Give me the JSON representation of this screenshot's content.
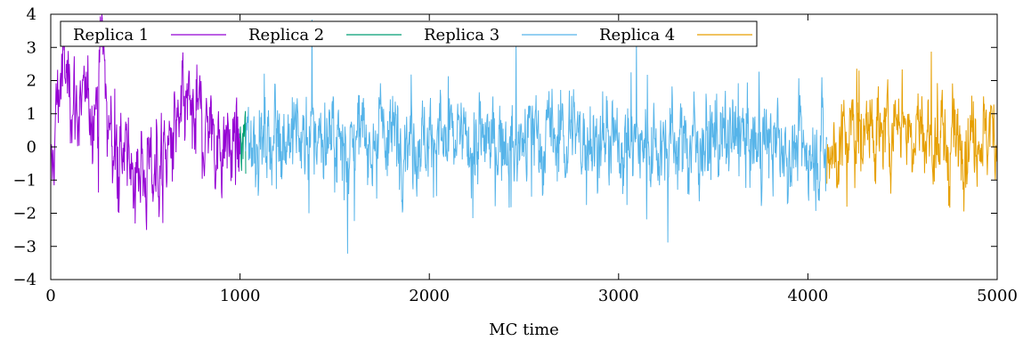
{
  "chart_data": {
    "type": "line",
    "title": "",
    "xlabel": "MC time",
    "ylabel": "",
    "xlim": [
      0,
      5000
    ],
    "ylim": [
      -4,
      4
    ],
    "xticks": [
      "0",
      "1000",
      "2000",
      "3000",
      "4000",
      "5000"
    ],
    "yticks": [
      "−4",
      "−3",
      "−2",
      "−1",
      "0",
      "1",
      "2",
      "3",
      "4"
    ],
    "grid": false,
    "legend_position": "top-left",
    "series": [
      {
        "name": "Replica 1",
        "color": "#9400d3",
        "x_range": [
          0,
          1000
        ],
        "keypoints": [
          [
            0,
            -1.6
          ],
          [
            30,
            1.2
          ],
          [
            60,
            2.4
          ],
          [
            100,
            1.9
          ],
          [
            150,
            1.0
          ],
          [
            200,
            1.3
          ],
          [
            250,
            1.1
          ],
          [
            270,
            3.8
          ],
          [
            300,
            0.6
          ],
          [
            350,
            -0.2
          ],
          [
            400,
            -0.5
          ],
          [
            450,
            -0.6
          ],
          [
            500,
            -0.7
          ],
          [
            550,
            -0.6
          ],
          [
            600,
            -0.3
          ],
          [
            650,
            0.2
          ],
          [
            700,
            0.9
          ],
          [
            750,
            1.0
          ],
          [
            800,
            0.7
          ],
          [
            850,
            0.5
          ],
          [
            900,
            0.1
          ],
          [
            950,
            0.1
          ],
          [
            1000,
            -0.1
          ]
        ]
      },
      {
        "name": "Replica 2",
        "color": "#009e73",
        "x_range": [
          1000,
          1030
        ],
        "keypoints": [
          [
            1000,
            0.2
          ],
          [
            1010,
            -0.4
          ],
          [
            1020,
            0.5
          ],
          [
            1030,
            -0.3
          ]
        ]
      },
      {
        "name": "Replica 3",
        "color": "#56b4e9",
        "x_range": [
          1030,
          4100
        ],
        "keypoints": [
          [
            1030,
            0.2
          ],
          [
            1300,
            0.3
          ],
          [
            1600,
            0.2
          ],
          [
            1900,
            0.4
          ],
          [
            2200,
            0.1
          ],
          [
            2500,
            0.2
          ],
          [
            2800,
            0.3
          ],
          [
            3100,
            0.1
          ],
          [
            3400,
            0.2
          ],
          [
            3700,
            0.1
          ],
          [
            4000,
            -0.1
          ],
          [
            4100,
            0.0
          ]
        ]
      },
      {
        "name": "Replica 4",
        "color": "#e69f00",
        "x_range": [
          4100,
          5000
        ],
        "keypoints": [
          [
            4100,
            -0.3
          ],
          [
            4200,
            0.2
          ],
          [
            4300,
            0.5
          ],
          [
            4400,
            0.4
          ],
          [
            4500,
            0.9
          ],
          [
            4600,
            0.5
          ],
          [
            4700,
            0.2
          ],
          [
            4800,
            0.1
          ],
          [
            4900,
            0.4
          ],
          [
            5000,
            0.5
          ]
        ]
      }
    ]
  }
}
